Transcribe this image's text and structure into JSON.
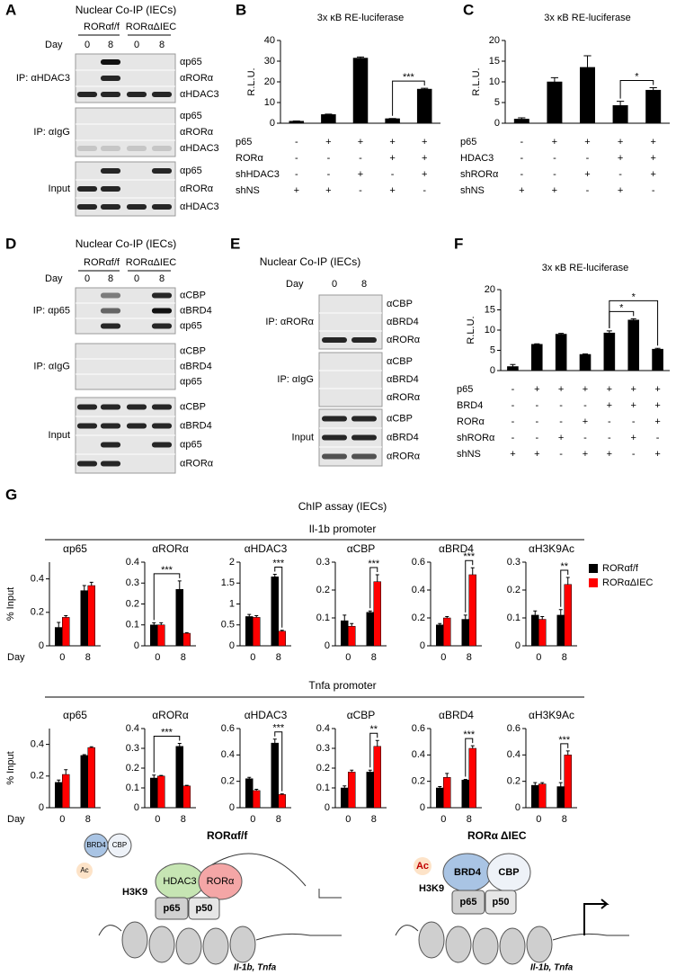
{
  "blots": [
    {
      "panel": "A",
      "title": "Nuclear Co-IP (IECs)",
      "groups": [
        "RORαf/f",
        "RORαΔIEC"
      ],
      "day_label": "Day",
      "days": [
        0,
        8,
        0,
        8
      ],
      "sections": [
        {
          "label": "IP: αHDAC3",
          "rows": [
            "αp65",
            "αRORα",
            "αHDAC3"
          ]
        },
        {
          "label": "IP: αIgG",
          "rows": [
            "αp65",
            "αRORα",
            "αHDAC3"
          ]
        },
        {
          "label": "Input",
          "rows": [
            "αp65",
            "αRORα",
            "αHDAC3"
          ]
        }
      ]
    },
    {
      "panel": "D",
      "title": "Nuclear Co-IP (IECs)",
      "groups": [
        "RORαf/f",
        "RORαΔIEC"
      ],
      "day_label": "Day",
      "days": [
        0,
        8,
        0,
        8
      ],
      "sections": [
        {
          "label": "IP: αp65",
          "rows": [
            "αCBP",
            "αBRD4",
            "αp65"
          ]
        },
        {
          "label": "IP: αIgG",
          "rows": [
            "αCBP",
            "αBRD4",
            "αp65"
          ]
        },
        {
          "label": "Input",
          "rows": [
            "αCBP",
            "αBRD4",
            "αp65",
            "αRORα"
          ]
        }
      ]
    },
    {
      "panel": "E",
      "title": "Nuclear Co-IP (IECs)",
      "day_label": "Day",
      "days": [
        0,
        8
      ],
      "sections": [
        {
          "label": "IP: αRORα",
          "rows": [
            "αCBP",
            "αBRD4",
            "αRORα"
          ]
        },
        {
          "label": "IP: αIgG",
          "rows": [
            "αCBP",
            "αBRD4",
            "αRORα"
          ]
        },
        {
          "label": "Input",
          "rows": [
            "αCBP",
            "αBRD4",
            "αRORα"
          ]
        }
      ]
    }
  ],
  "chart_data": [
    {
      "type": "bar",
      "panel": "B",
      "title": "3x κB RE-luciferase",
      "ylabel": "R.L.U.",
      "ylim": [
        0,
        40
      ],
      "yticks": [
        0,
        10,
        20,
        30,
        40
      ],
      "color": "#000000",
      "values": [
        1,
        4.2,
        31.5,
        2.2,
        16.5
      ],
      "errors": [
        0.1,
        0.2,
        0.5,
        0.1,
        0.4
      ],
      "conditions": [
        {
          "label": "p65",
          "marks": [
            "-",
            "+",
            "+",
            "+",
            "+"
          ]
        },
        {
          "label": "RORα",
          "marks": [
            "-",
            "-",
            "-",
            "+",
            "+"
          ]
        },
        {
          "label": "shHDAC3",
          "marks": [
            "-",
            "-",
            "+",
            "-",
            "+"
          ]
        },
        {
          "label": "shNS",
          "marks": [
            "+",
            "+",
            "-",
            "+",
            "-"
          ]
        }
      ],
      "annotations": [
        {
          "text": "***",
          "bars": [
            3,
            4
          ]
        }
      ]
    },
    {
      "type": "bar",
      "panel": "C",
      "title": "3x κB RE-luciferase",
      "ylabel": "R.L.U.",
      "ylim": [
        0,
        20
      ],
      "yticks": [
        0,
        5,
        10,
        15,
        20
      ],
      "color": "#000000",
      "values": [
        1,
        10,
        13.5,
        4.3,
        8
      ],
      "errors": [
        0.3,
        1,
        2.8,
        1,
        0.6
      ],
      "conditions": [
        {
          "label": "p65",
          "marks": [
            "-",
            "+",
            "+",
            "+",
            "+"
          ]
        },
        {
          "label": "HDAC3",
          "marks": [
            "-",
            "-",
            "-",
            "+",
            "+"
          ]
        },
        {
          "label": "shRORα",
          "marks": [
            "-",
            "-",
            "+",
            "-",
            "+"
          ]
        },
        {
          "label": "shNS",
          "marks": [
            "+",
            "+",
            "-",
            "+",
            "-"
          ]
        }
      ],
      "annotations": [
        {
          "text": "*",
          "bars": [
            3,
            4
          ]
        }
      ]
    },
    {
      "type": "bar",
      "panel": "F",
      "title": "3x κB RE-luciferase",
      "ylabel": "R.L.U.",
      "ylim": [
        0,
        20
      ],
      "yticks": [
        0,
        5,
        10,
        15,
        20
      ],
      "color": "#000000",
      "values": [
        1,
        6.5,
        9,
        4,
        9.3,
        12.5,
        5.3
      ],
      "errors": [
        0.5,
        0.1,
        0.2,
        0.1,
        0.5,
        0.3,
        0.2
      ],
      "conditions": [
        {
          "label": "p65",
          "marks": [
            "-",
            "+",
            "+",
            "+",
            "+",
            "+",
            "+"
          ]
        },
        {
          "label": "BRD4",
          "marks": [
            "-",
            "-",
            "-",
            "-",
            "+",
            "+",
            "+"
          ]
        },
        {
          "label": "RORα",
          "marks": [
            "-",
            "-",
            "-",
            "+",
            "-",
            "-",
            "+"
          ]
        },
        {
          "label": "shRORα",
          "marks": [
            "-",
            "-",
            "+",
            "-",
            "-",
            "+",
            "-"
          ]
        },
        {
          "label": "shNS",
          "marks": [
            "+",
            "+",
            "-",
            "+",
            "+",
            "-",
            "+"
          ]
        }
      ],
      "annotations": [
        {
          "text": "*",
          "bars": [
            4,
            5
          ]
        },
        {
          "text": "*",
          "bars": [
            4,
            6
          ]
        }
      ]
    },
    {
      "type": "bar",
      "title": "αp65",
      "ylabel": "% Input",
      "xlabel": "Day",
      "ylim": [
        0,
        0.5
      ],
      "yticks": [
        0,
        0.2,
        0.4
      ],
      "categories": [
        "0",
        "8"
      ],
      "series": [
        {
          "name": "RORαf/f",
          "color": "#000000",
          "values": [
            0.11,
            0.33
          ],
          "errors": [
            0.03,
            0.03
          ]
        },
        {
          "name": "RORαΔIEC",
          "color": "#ff0000",
          "values": [
            0.17,
            0.36
          ],
          "errors": [
            0.01,
            0.02
          ]
        }
      ]
    },
    {
      "type": "bar",
      "title": "αRORα",
      "ylim": [
        0,
        0.4
      ],
      "yticks": [
        0,
        0.1,
        0.2,
        0.3,
        0.4
      ],
      "categories": [
        "0",
        "8"
      ],
      "series": [
        {
          "name": "RORαf/f",
          "color": "#000000",
          "values": [
            0.1,
            0.27
          ],
          "errors": [
            0.01,
            0.04
          ]
        },
        {
          "name": "RORαΔIEC",
          "color": "#ff0000",
          "values": [
            0.1,
            0.06
          ],
          "errors": [
            0.01,
            0.003
          ]
        }
      ],
      "annotations": [
        {
          "text": "***",
          "bars": [
            [
              0,
              0
            ],
            [
              0,
              1
            ]
          ]
        }
      ]
    },
    {
      "type": "bar",
      "title": "αHDAC3",
      "ylim": [
        0,
        2
      ],
      "yticks": [
        0,
        0.5,
        1,
        1.5,
        2
      ],
      "categories": [
        "0",
        "8"
      ],
      "series": [
        {
          "name": "RORαf/f",
          "color": "#000000",
          "values": [
            0.7,
            1.65
          ],
          "errors": [
            0.05,
            0.06
          ]
        },
        {
          "name": "RORαΔIEC",
          "color": "#ff0000",
          "values": [
            0.68,
            0.35
          ],
          "errors": [
            0.04,
            0.02
          ]
        }
      ],
      "annotations": [
        {
          "text": "***",
          "bars": [
            [
              0,
              1
            ],
            [
              1,
              1
            ]
          ]
        }
      ]
    },
    {
      "type": "bar",
      "title": "αCBP",
      "ylim": [
        0,
        0.3
      ],
      "yticks": [
        0,
        0.1,
        0.2,
        0.3
      ],
      "categories": [
        "0",
        "8"
      ],
      "series": [
        {
          "name": "RORαf/f",
          "color": "#000000",
          "values": [
            0.09,
            0.12
          ],
          "errors": [
            0.02,
            0.005
          ]
        },
        {
          "name": "RORαΔIEC",
          "color": "#ff0000",
          "values": [
            0.07,
            0.23
          ],
          "errors": [
            0.01,
            0.025
          ]
        }
      ],
      "annotations": [
        {
          "text": "***",
          "bars": [
            [
              0,
              1
            ],
            [
              1,
              1
            ]
          ]
        }
      ]
    },
    {
      "type": "bar",
      "title": "αBRD4",
      "ylim": [
        0,
        0.6
      ],
      "yticks": [
        0,
        0.2,
        0.4,
        0.6
      ],
      "categories": [
        "0",
        "8"
      ],
      "series": [
        {
          "name": "RORαf/f",
          "color": "#000000",
          "values": [
            0.15,
            0.19
          ],
          "errors": [
            0.01,
            0.03
          ]
        },
        {
          "name": "RORαΔIEC",
          "color": "#ff0000",
          "values": [
            0.2,
            0.51
          ],
          "errors": [
            0.01,
            0.05
          ]
        }
      ],
      "annotations": [
        {
          "text": "***",
          "bars": [
            [
              0,
              1
            ],
            [
              1,
              1
            ]
          ]
        }
      ]
    },
    {
      "type": "bar",
      "title": "αH3K9Ac",
      "ylim": [
        0,
        0.3
      ],
      "yticks": [
        0,
        0.1,
        0.2,
        0.3
      ],
      "categories": [
        "0",
        "8"
      ],
      "series": [
        {
          "name": "RORαf/f",
          "color": "#000000",
          "values": [
            0.11,
            0.11
          ],
          "errors": [
            0.015,
            0.02
          ]
        },
        {
          "name": "RORαΔIEC",
          "color": "#ff0000",
          "values": [
            0.095,
            0.22
          ],
          "errors": [
            0.01,
            0.025
          ]
        }
      ],
      "annotations": [
        {
          "text": "**",
          "bars": [
            [
              0,
              1
            ],
            [
              1,
              1
            ]
          ]
        }
      ]
    },
    {
      "type": "bar",
      "title": "αp65",
      "ylabel": "% Input",
      "xlabel": "Day",
      "ylim": [
        0,
        0.5
      ],
      "yticks": [
        0,
        0.2,
        0.4
      ],
      "categories": [
        "0",
        "8"
      ],
      "series": [
        {
          "name": "RORαf/f",
          "color": "#000000",
          "values": [
            0.16,
            0.33
          ],
          "errors": [
            0.015,
            0.005
          ]
        },
        {
          "name": "RORαΔIEC",
          "color": "#ff0000",
          "values": [
            0.21,
            0.38
          ],
          "errors": [
            0.03,
            0.005
          ]
        }
      ]
    },
    {
      "type": "bar",
      "title": "αRORα",
      "ylim": [
        0,
        0.4
      ],
      "yticks": [
        0,
        0.1,
        0.2,
        0.3,
        0.4
      ],
      "categories": [
        "0",
        "8"
      ],
      "series": [
        {
          "name": "RORαf/f",
          "color": "#000000",
          "values": [
            0.15,
            0.31
          ],
          "errors": [
            0.015,
            0.015
          ]
        },
        {
          "name": "RORαΔIEC",
          "color": "#ff0000",
          "values": [
            0.16,
            0.11
          ],
          "errors": [
            0.003,
            0.003
          ]
        }
      ],
      "annotations": [
        {
          "text": "***",
          "bars": [
            [
              0,
              0
            ],
            [
              0,
              1
            ]
          ]
        }
      ]
    },
    {
      "type": "bar",
      "title": "αHDAC3",
      "ylim": [
        0,
        0.6
      ],
      "yticks": [
        0,
        0.2,
        0.4,
        0.6
      ],
      "categories": [
        "0",
        "8"
      ],
      "series": [
        {
          "name": "RORαf/f",
          "color": "#000000",
          "values": [
            0.22,
            0.49
          ],
          "errors": [
            0.01,
            0.03
          ]
        },
        {
          "name": "RORαΔIEC",
          "color": "#ff0000",
          "values": [
            0.13,
            0.1
          ],
          "errors": [
            0.01,
            0.005
          ]
        }
      ],
      "annotations": [
        {
          "text": "***",
          "bars": [
            [
              0,
              1
            ],
            [
              1,
              1
            ]
          ]
        }
      ]
    },
    {
      "type": "bar",
      "title": "αCBP",
      "ylim": [
        0,
        0.4
      ],
      "yticks": [
        0,
        0.1,
        0.2,
        0.3,
        0.4
      ],
      "categories": [
        "0",
        "8"
      ],
      "series": [
        {
          "name": "RORαf/f",
          "color": "#000000",
          "values": [
            0.1,
            0.18
          ],
          "errors": [
            0.01,
            0.01
          ]
        },
        {
          "name": "RORαΔIEC",
          "color": "#ff0000",
          "values": [
            0.18,
            0.31
          ],
          "errors": [
            0.01,
            0.03
          ]
        }
      ],
      "annotations": [
        {
          "text": "**",
          "bars": [
            [
              0,
              1
            ],
            [
              1,
              1
            ]
          ]
        }
      ]
    },
    {
      "type": "bar",
      "title": "αBRD4",
      "ylim": [
        0,
        0.6
      ],
      "yticks": [
        0,
        0.2,
        0.4,
        0.6
      ],
      "categories": [
        "0",
        "8"
      ],
      "series": [
        {
          "name": "RORαf/f",
          "color": "#000000",
          "values": [
            0.15,
            0.21
          ],
          "errors": [
            0.01,
            0.005
          ]
        },
        {
          "name": "RORαΔIEC",
          "color": "#ff0000",
          "values": [
            0.23,
            0.45
          ],
          "errors": [
            0.03,
            0.02
          ]
        }
      ],
      "annotations": [
        {
          "text": "***",
          "bars": [
            [
              0,
              1
            ],
            [
              1,
              1
            ]
          ]
        }
      ]
    },
    {
      "type": "bar",
      "title": "αH3K9Ac",
      "ylim": [
        0,
        0.6
      ],
      "yticks": [
        0,
        0.2,
        0.4,
        0.6
      ],
      "categories": [
        "0",
        "8"
      ],
      "series": [
        {
          "name": "RORαf/f",
          "color": "#000000",
          "values": [
            0.17,
            0.16
          ],
          "errors": [
            0.02,
            0.03
          ]
        },
        {
          "name": "RORαΔIEC",
          "color": "#ff0000",
          "values": [
            0.18,
            0.4
          ],
          "errors": [
            0.01,
            0.03
          ]
        }
      ],
      "annotations": [
        {
          "text": "***",
          "bars": [
            [
              0,
              1
            ],
            [
              1,
              1
            ]
          ]
        }
      ]
    }
  ],
  "chip": {
    "panel": "G",
    "title": "ChIP assay (IECs)",
    "promoters": [
      "Il-1b promoter",
      "Tnfa promoter"
    ]
  },
  "diagram": {
    "left": {
      "title": "RORαf/f",
      "brd4": "BRD4",
      "cbp": "CBP",
      "ac": "Ac",
      "h3k9": "H3K9",
      "hdac3": "HDAC3",
      "rora": "RORα",
      "p65": "p65",
      "p50": "p50",
      "genes": "Il-1b, Tnfa"
    },
    "right": {
      "title": "RORα ΔIEC",
      "ac": "Ac",
      "h3k9": "H3K9",
      "brd4": "BRD4",
      "cbp": "CBP",
      "p65": "p65",
      "p50": "p50",
      "genes": "Il-1b, Tnfa"
    }
  }
}
